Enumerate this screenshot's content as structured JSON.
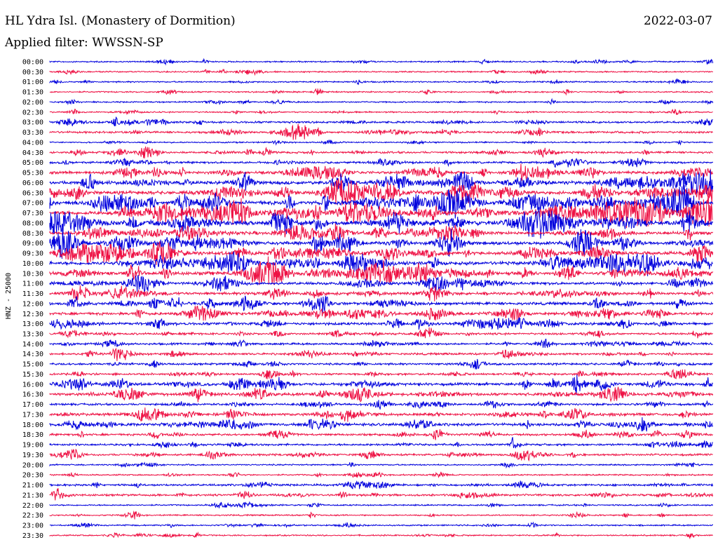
{
  "header": {
    "station": "HL Ydra Isl. (Monastery of Dormition)",
    "date": "2022-03-07",
    "filter": "Applied filter: WWSSN-SP"
  },
  "chart_data": {
    "type": "line",
    "title": "HL Ydra Isl. (Monastery of Dormition)",
    "ylabel": "HNZ - 25000",
    "colors": [
      "#0000dd",
      "#ee1144"
    ],
    "tick_labels": [
      "00:00",
      "00:30",
      "01:00",
      "01:30",
      "02:00",
      "02:30",
      "03:00",
      "03:30",
      "04:00",
      "04:30",
      "05:00",
      "05:30",
      "06:00",
      "06:30",
      "07:00",
      "07:30",
      "08:00",
      "08:30",
      "09:00",
      "09:30",
      "10:00",
      "10:30",
      "11:00",
      "11:30",
      "12:00",
      "12:30",
      "13:00",
      "13:30",
      "14:00",
      "14:30",
      "15:00",
      "15:30",
      "16:00",
      "16:30",
      "17:00",
      "17:30",
      "18:00",
      "18:30",
      "19:00",
      "19:30",
      "20:00",
      "20:30",
      "21:00",
      "21:30",
      "22:00",
      "22:30",
      "23:00",
      "23:30"
    ],
    "activity": [
      1,
      1,
      1,
      1,
      1,
      1,
      2,
      2,
      1,
      2,
      2,
      3,
      4,
      4,
      5,
      5,
      5,
      4,
      4,
      4,
      4,
      4,
      3,
      3,
      3,
      3,
      3,
      2,
      2,
      2,
      2,
      2,
      3,
      3,
      2,
      3,
      3,
      2,
      2,
      2,
      1,
      1,
      2,
      2,
      1,
      1,
      1,
      1
    ]
  }
}
